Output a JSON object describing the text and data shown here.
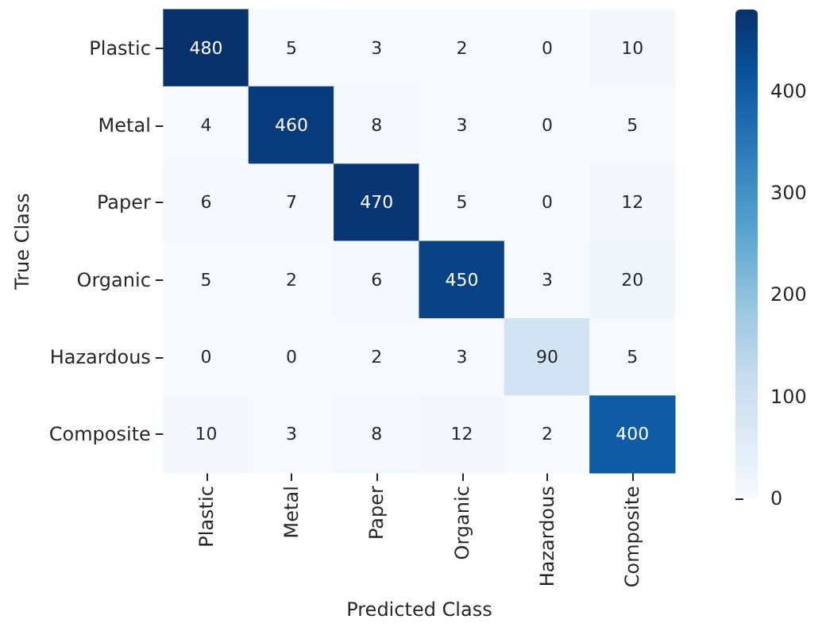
{
  "chart_data": {
    "type": "heatmap",
    "xlabel": "Predicted Class",
    "ylabel": "True Class",
    "categories": [
      "Plastic",
      "Metal",
      "Paper",
      "Organic",
      "Hazardous",
      "Composite"
    ],
    "y_categories": [
      "Plastic",
      "Metal",
      "Paper",
      "Organic",
      "Hazardous",
      "Composite"
    ],
    "cells": [
      [
        480,
        5,
        3,
        2,
        0,
        10
      ],
      [
        4,
        460,
        8,
        3,
        0,
        5
      ],
      [
        6,
        7,
        470,
        5,
        0,
        12
      ],
      [
        5,
        2,
        6,
        450,
        3,
        20
      ],
      [
        0,
        0,
        2,
        3,
        90,
        5
      ],
      [
        10,
        3,
        8,
        12,
        2,
        400
      ]
    ],
    "clim": [
      0,
      480
    ],
    "cticks": [
      0,
      100,
      200,
      300,
      400
    ],
    "data_labels": true
  }
}
